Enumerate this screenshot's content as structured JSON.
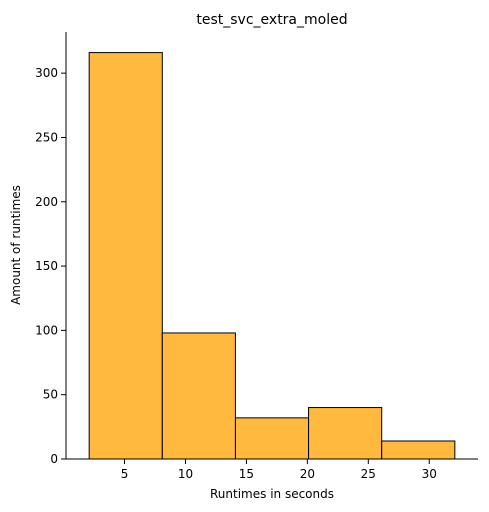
{
  "chart_data": {
    "type": "bar",
    "title": "test_svc_extra_moled",
    "xlabel": "Runtimes in seconds",
    "ylabel": "Amount of runtimes",
    "bins": [
      {
        "start": 2.1,
        "end": 8.1,
        "count": 316
      },
      {
        "start": 8.1,
        "end": 14.1,
        "count": 98
      },
      {
        "start": 14.1,
        "end": 20.1,
        "count": 32
      },
      {
        "start": 20.1,
        "end": 26.1,
        "count": 40
      },
      {
        "start": 26.1,
        "end": 32.1,
        "count": 14
      }
    ],
    "xlim": [
      0.2,
      34.0
    ],
    "ylim": [
      0,
      332
    ],
    "xticks": [
      5,
      10,
      15,
      20,
      25,
      30
    ],
    "yticks": [
      0,
      50,
      100,
      150,
      200,
      250,
      300
    ],
    "grid": false,
    "bar_color": "#ffb93f",
    "edge_color": "#000000"
  }
}
